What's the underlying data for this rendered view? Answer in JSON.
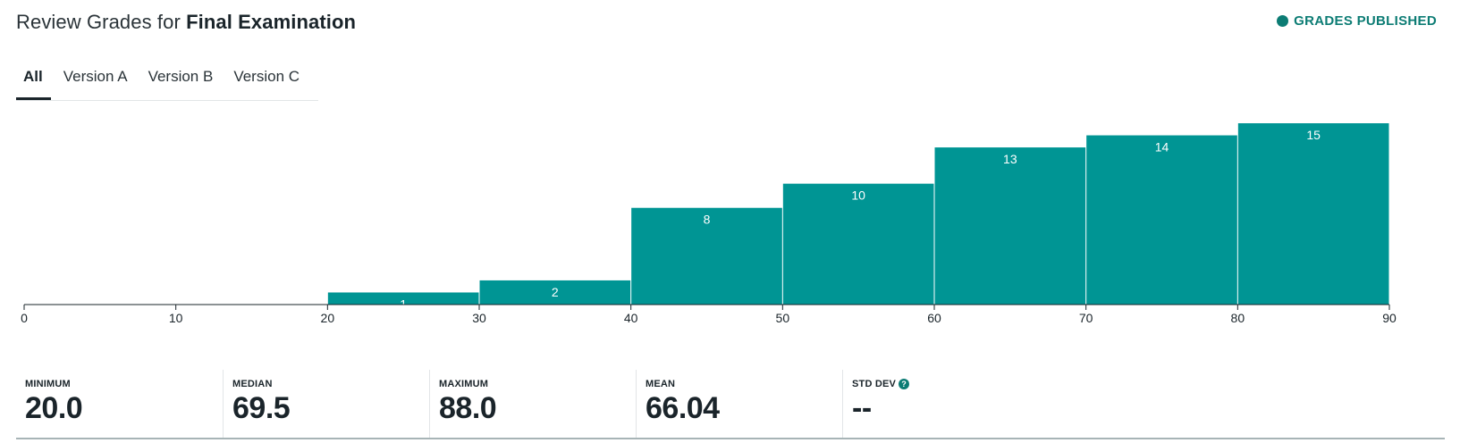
{
  "header": {
    "title_prefix": "Review Grades for",
    "title_bold": "Final Examination",
    "status": "GRADES PUBLISHED",
    "status_icon": "status-dot-icon",
    "accent": "#0c7c74"
  },
  "tabs": [
    {
      "label": "All",
      "active": true
    },
    {
      "label": "Version A",
      "active": false
    },
    {
      "label": "Version B",
      "active": false
    },
    {
      "label": "Version C",
      "active": false
    }
  ],
  "stats": {
    "minimum": {
      "label": "MINIMUM",
      "value": "20.0"
    },
    "median": {
      "label": "MEDIAN",
      "value": "69.5"
    },
    "maximum": {
      "label": "MAXIMUM",
      "value": "88.0"
    },
    "mean": {
      "label": "MEAN",
      "value": "66.04"
    },
    "std_dev": {
      "label": "STD DEV",
      "value": "--",
      "icon": "help-icon"
    }
  },
  "chart_data": {
    "type": "bar",
    "bins": [
      [
        20,
        30
      ],
      [
        30,
        40
      ],
      [
        40,
        50
      ],
      [
        50,
        60
      ],
      [
        60,
        70
      ],
      [
        70,
        80
      ],
      [
        80,
        90
      ]
    ],
    "values": [
      1,
      2,
      8,
      10,
      13,
      14,
      15
    ],
    "xticks": [
      0,
      10,
      20,
      30,
      40,
      50,
      60,
      70,
      80,
      90
    ],
    "xlim": [
      0,
      90
    ],
    "ylim": [
      0,
      15
    ],
    "bar_color": "#009594",
    "grid": false
  }
}
